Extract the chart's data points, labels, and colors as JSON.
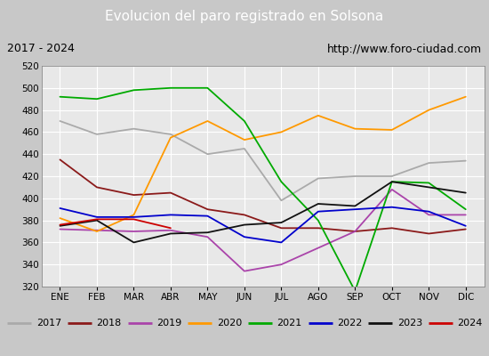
{
  "title": "Evolucion del paro registrado en Solsona",
  "subtitle_left": "2017 - 2024",
  "subtitle_right": "http://www.foro-ciudad.com",
  "months": [
    "ENE",
    "FEB",
    "MAR",
    "ABR",
    "MAY",
    "JUN",
    "JUL",
    "AGO",
    "SEP",
    "OCT",
    "NOV",
    "DIC"
  ],
  "ylim": [
    320,
    520
  ],
  "yticks": [
    320,
    340,
    360,
    380,
    400,
    420,
    440,
    460,
    480,
    500,
    520
  ],
  "series": {
    "2017": {
      "color": "#aaaaaa",
      "linestyle": "-",
      "values": [
        470,
        458,
        463,
        458,
        440,
        445,
        398,
        418,
        420,
        420,
        432,
        434
      ]
    },
    "2018": {
      "color": "#8b1a1a",
      "linestyle": "-",
      "values": [
        435,
        410,
        403,
        405,
        390,
        385,
        373,
        373,
        370,
        373,
        368,
        372
      ]
    },
    "2019": {
      "color": "#aa44aa",
      "linestyle": "-",
      "values": [
        372,
        371,
        370,
        371,
        365,
        334,
        340,
        355,
        370,
        408,
        385,
        385
      ]
    },
    "2020": {
      "color": "#ff9900",
      "linestyle": "-",
      "values": [
        382,
        370,
        385,
        455,
        470,
        453,
        460,
        475,
        463,
        462,
        480,
        492
      ]
    },
    "2021": {
      "color": "#00aa00",
      "linestyle": "-",
      "values": [
        492,
        490,
        498,
        500,
        500,
        470,
        415,
        380,
        316,
        415,
        414,
        390
      ]
    },
    "2022": {
      "color": "#0000cc",
      "linestyle": "-",
      "values": [
        391,
        383,
        383,
        385,
        384,
        365,
        360,
        388,
        390,
        392,
        388,
        375
      ]
    },
    "2023": {
      "color": "#111111",
      "linestyle": "-",
      "values": [
        375,
        380,
        360,
        368,
        369,
        376,
        378,
        395,
        393,
        415,
        410,
        405
      ]
    },
    "2024": {
      "color": "#cc0000",
      "linestyle": "-",
      "values": [
        376,
        381,
        381,
        373,
        null,
        null,
        null,
        null,
        null,
        null,
        null,
        null
      ]
    }
  },
  "title_bg_color": "#5588cc",
  "title_text_color": "#ffffff",
  "subtitle_bg_color": "#ffffff",
  "plot_bg_color": "#e8e8e8",
  "legend_bg_color": "#f0f0f0",
  "grid_color": "#ffffff",
  "outer_bg_color": "#c8c8c8",
  "border_color": "#000080"
}
